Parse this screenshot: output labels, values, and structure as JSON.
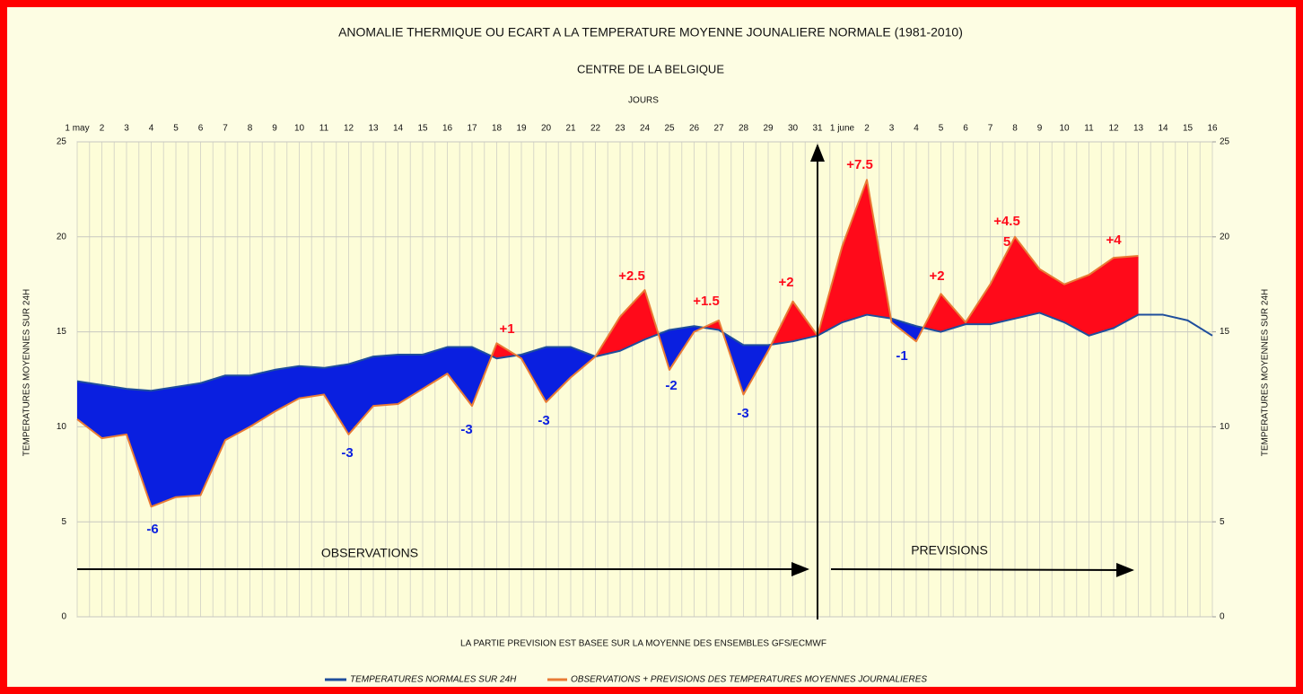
{
  "chart_data": {
    "type": "anomaly-area",
    "title": "ANOMALIE THERMIQUE OU ECART A LA TEMPERATURE MOYENNE JOUNALIERE NORMALE (1981-2010)",
    "subtitle": "CENTRE DE LA BELGIQUE",
    "x_label": "JOURS",
    "y_label": "TEMPERATURES MOYENNES SUR 24H",
    "y2_label": "TEMPERATURES MOYENNES SUR 24H",
    "footnote": "LA PARTIE PREVISION EST BASEE SUR LA MOYENNE DES ENSEMBLES GFS/ECMWF",
    "observations_label": "OBSERVATIONS",
    "forecast_label": "PREVISIONS",
    "categories": [
      "1 may",
      "2",
      "3",
      "4",
      "5",
      "6",
      "7",
      "8",
      "9",
      "10",
      "11",
      "12",
      "13",
      "14",
      "15",
      "16",
      "17",
      "18",
      "19",
      "20",
      "21",
      "22",
      "23",
      "24",
      "25",
      "26",
      "27",
      "28",
      "29",
      "30",
      "31",
      "1 june",
      "2",
      "3",
      "4",
      "5",
      "6",
      "7",
      "8",
      "9",
      "10",
      "11",
      "12",
      "13",
      "14",
      "15",
      "16"
    ],
    "series": [
      {
        "name": "TEMPERATURES NORMALES SUR 24H",
        "color": "#1f4e9c",
        "values": [
          12.4,
          12.2,
          12.0,
          11.9,
          12.1,
          12.3,
          12.7,
          12.7,
          13.0,
          13.2,
          13.1,
          13.3,
          13.7,
          13.8,
          13.8,
          14.2,
          14.2,
          13.6,
          13.8,
          14.2,
          14.2,
          13.7,
          14.0,
          14.6,
          15.1,
          15.3,
          15.1,
          14.3,
          14.3,
          14.5,
          14.8,
          15.5,
          15.9,
          15.7,
          15.3,
          15.0,
          15.4,
          15.4,
          15.7,
          16.0,
          15.5,
          14.8,
          15.2,
          15.9,
          15.9,
          15.6,
          14.8
        ]
      },
      {
        "name": "OBSERVATIONS + PREVISIONS DES TEMPERATURES MOYENNES JOURNALIERES",
        "color": "#e87b35",
        "values": [
          10.4,
          9.4,
          9.6,
          5.8,
          6.3,
          6.4,
          9.3,
          10.0,
          10.8,
          11.5,
          11.7,
          9.6,
          11.1,
          11.2,
          12.0,
          12.8,
          11.1,
          14.4,
          13.6,
          11.3,
          12.6,
          13.7,
          15.8,
          17.2,
          13.0,
          15.0,
          15.6,
          11.7,
          14.0,
          16.6,
          14.8,
          19.5,
          23.0,
          15.5,
          14.5,
          17.0,
          15.5,
          17.5,
          20.0,
          18.3,
          17.5,
          18.0,
          18.9,
          19.0,
          null,
          null,
          null
        ]
      }
    ],
    "fill_above": "#ff0a1a",
    "fill_below": "#0a1fe0",
    "annotations": [
      "-6",
      "-3",
      "-3",
      "-3",
      "+1",
      "+2.5",
      "-2",
      "+1.5",
      "-3",
      "+2",
      "+7.5",
      "-1",
      "+2",
      "+4.5",
      "5",
      "+4"
    ],
    "ylim": [
      0,
      25
    ],
    "yticks": [
      0,
      5,
      10,
      15,
      20,
      25
    ],
    "y2lim": [
      0,
      25
    ],
    "y2ticks": [
      0,
      5,
      10,
      15,
      20,
      25
    ],
    "grid": true
  }
}
